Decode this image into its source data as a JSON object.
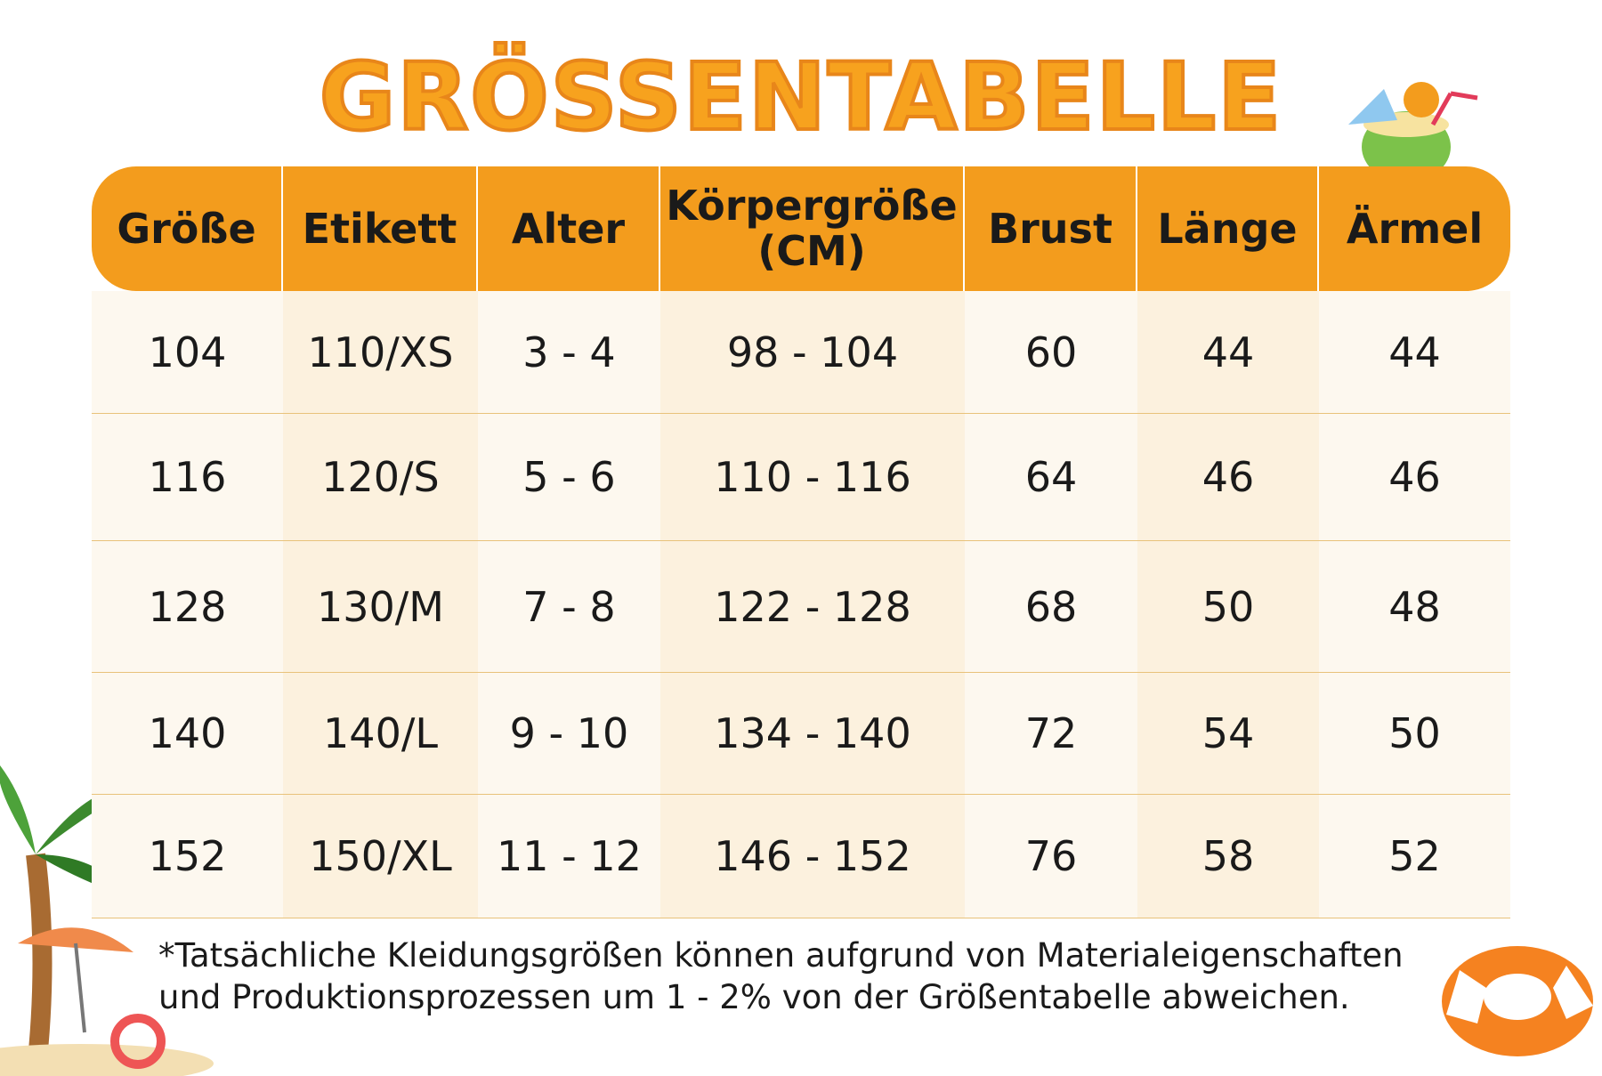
{
  "title": "GRÖSSENTABELLE",
  "table": {
    "headers": [
      "Größe",
      "Etikett",
      "Alter",
      "Körpergröße (CM)",
      "Brust",
      "Länge",
      "Ärmel"
    ],
    "rows": [
      [
        "104",
        "110/XS",
        "3 - 4",
        "98 - 104",
        "60",
        "44",
        "44"
      ],
      [
        "116",
        "120/S",
        "5 - 6",
        "110 - 116",
        "64",
        "46",
        "46"
      ],
      [
        "128",
        "130/M",
        "7 - 8",
        "122 - 128",
        "68",
        "50",
        "48"
      ],
      [
        "140",
        "140/L",
        "9 - 10",
        "134 - 140",
        "72",
        "54",
        "50"
      ],
      [
        "152",
        "150/XL",
        "11 - 12",
        "146 - 152",
        "76",
        "58",
        "52"
      ]
    ]
  },
  "footnote": [
    "*Tatsächliche Kleidungsgrößen können aufgrund von Materialeigenschaften",
    "und Produktionsprozessen um 1 - 2% von der Größentabelle abweichen."
  ]
}
